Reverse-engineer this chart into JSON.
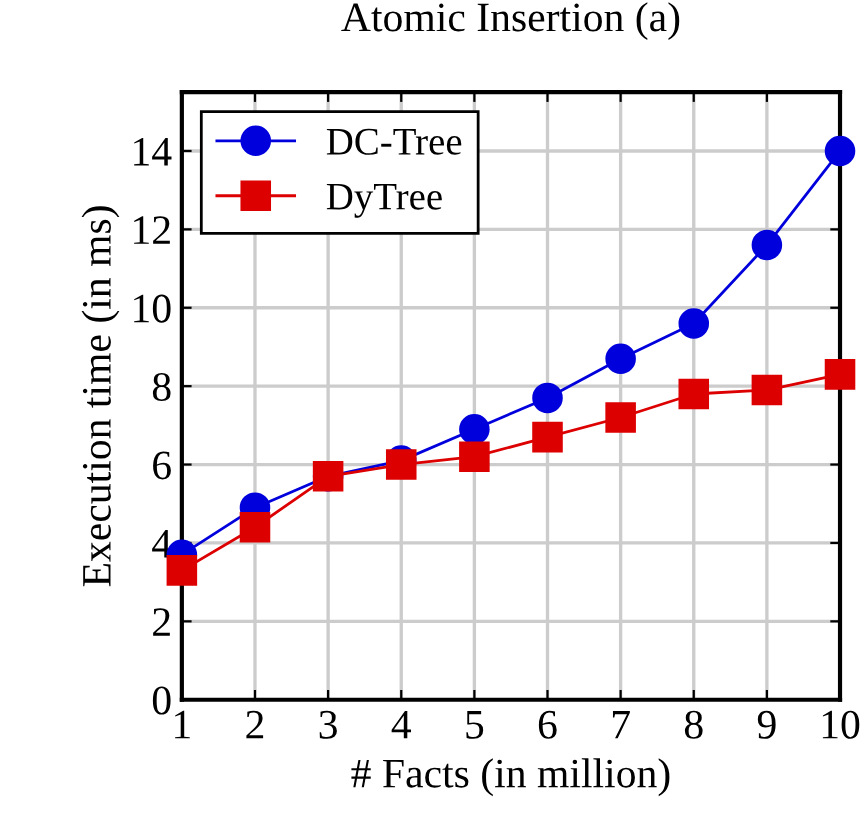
{
  "chart_data": {
    "type": "line",
    "title": "Atomic Insertion (a)",
    "xlabel": "# Facts (in million)",
    "ylabel": "Execution time (in ms)",
    "x": [
      1,
      2,
      3,
      4,
      5,
      6,
      7,
      8,
      9,
      10
    ],
    "series": [
      {
        "name": "DC-Tree",
        "color": "#0000dd",
        "marker": "circle",
        "values": [
          3.7,
          4.9,
          5.7,
          6.1,
          6.9,
          7.7,
          8.7,
          9.6,
          11.6,
          14.0
        ]
      },
      {
        "name": "DyTree",
        "color": "#dd0000",
        "marker": "square",
        "values": [
          3.3,
          4.4,
          5.7,
          6.0,
          6.2,
          6.7,
          7.2,
          7.8,
          7.9,
          8.3
        ]
      }
    ],
    "xlim": [
      1,
      10
    ],
    "xticks": [
      1,
      2,
      3,
      4,
      5,
      6,
      7,
      8,
      9,
      10
    ],
    "ylim": [
      0,
      15.5
    ],
    "yticks": [
      0,
      2,
      4,
      6,
      8,
      10,
      12,
      14
    ],
    "grid": true,
    "legend": "top left"
  }
}
